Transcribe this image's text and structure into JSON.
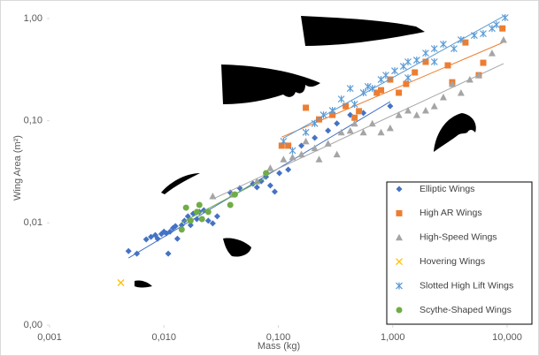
{
  "chart_data": {
    "type": "scatter",
    "x_label": "Mass (kg)",
    "y_label": "Wing Area (m²)",
    "xlog": true,
    "ylog": true,
    "trendline": true,
    "xlim": [
      0.001,
      10
    ],
    "ylim": [
      0.001,
      1
    ],
    "xticks": [
      {
        "value": 0.001,
        "label": "0,001"
      },
      {
        "value": 0.01,
        "label": "0,010"
      },
      {
        "value": 0.1,
        "label": "0,100"
      },
      {
        "value": 1,
        "label": "1,000"
      },
      {
        "value": 10,
        "label": "10,000"
      }
    ],
    "yticks": [
      {
        "value": 0.001,
        "label": "0,00"
      },
      {
        "value": 0.01,
        "label": "0,01"
      },
      {
        "value": 0.1,
        "label": "0,10"
      },
      {
        "value": 1,
        "label": "1,00"
      }
    ],
    "series": [
      {
        "name": "Elliptic Wings",
        "color": "#4472c4",
        "marker": "diamond",
        "x": [
          0.0049,
          0.0058,
          0.007,
          0.0077,
          0.0084,
          0.0088,
          0.0095,
          0.01,
          0.0105,
          0.0109,
          0.0113,
          0.012,
          0.0126,
          0.0131,
          0.0143,
          0.0151,
          0.0162,
          0.0171,
          0.018,
          0.0194,
          0.0204,
          0.0223,
          0.0244,
          0.0267,
          0.0292,
          0.038,
          0.046,
          0.06,
          0.065,
          0.071,
          0.078,
          0.085,
          0.093,
          0.102,
          0.122,
          0.159,
          0.208,
          0.272,
          0.325,
          0.425,
          0.554,
          0.95
        ],
        "values": [
          0.0053,
          0.005,
          0.0069,
          0.0073,
          0.0076,
          0.007,
          0.0078,
          0.0082,
          0.0079,
          0.005,
          0.0082,
          0.0089,
          0.0093,
          0.007,
          0.0095,
          0.0105,
          0.0116,
          0.0095,
          0.0123,
          0.0109,
          0.0128,
          0.0133,
          0.0105,
          0.0099,
          0.0116,
          0.0198,
          0.0219,
          0.0242,
          0.0223,
          0.0256,
          0.0283,
          0.0232,
          0.0202,
          0.0307,
          0.0332,
          0.057,
          0.068,
          0.08,
          0.094,
          0.114,
          0.119,
          0.139
        ]
      },
      {
        "name": "High AR Wings",
        "color": "#ed7d31",
        "marker": "square",
        "x": [
          0.107,
          0.122,
          0.174,
          0.227,
          0.297,
          0.388,
          0.464,
          0.507,
          0.725,
          0.79,
          0.95,
          1.13,
          1.31,
          1.56,
          1.94,
          3.03,
          3.31,
          4.32,
          5.65,
          6.18,
          9.1
        ],
        "values": [
          0.057,
          0.057,
          0.134,
          0.103,
          0.114,
          0.139,
          0.107,
          0.124,
          0.188,
          0.199,
          0.253,
          0.188,
          0.229,
          0.297,
          0.377,
          0.348,
          0.238,
          0.583,
          0.279,
          0.369,
          0.8
        ]
      },
      {
        "name": "High-Speed Wings",
        "color": "#a5a5a5",
        "marker": "triangle",
        "x": [
          0.0267,
          0.0395,
          0.065,
          0.085,
          0.111,
          0.133,
          0.159,
          0.174,
          0.208,
          0.227,
          0.272,
          0.325,
          0.355,
          0.425,
          0.464,
          0.554,
          0.663,
          0.79,
          0.95,
          1.13,
          1.36,
          1.62,
          1.94,
          2.31,
          2.77,
          3.31,
          3.95,
          4.72,
          5.65,
          7.38,
          9.3
        ],
        "values": [
          0.0183,
          0.019,
          0.0256,
          0.0345,
          0.042,
          0.044,
          0.047,
          0.063,
          0.054,
          0.042,
          0.06,
          0.047,
          0.077,
          0.08,
          0.094,
          0.077,
          0.094,
          0.077,
          0.085,
          0.114,
          0.126,
          0.114,
          0.126,
          0.139,
          0.17,
          0.229,
          0.188,
          0.253,
          0.279,
          0.459,
          0.62
        ]
      },
      {
        "name": "Hovering Wings",
        "color": "#ffc000",
        "marker": "cross",
        "x": [
          0.0042
        ],
        "values": [
          0.0026
        ]
      },
      {
        "name": "Slotted High Lift Wings",
        "color": "#5b9bd5",
        "marker": "star",
        "x": [
          0.111,
          0.133,
          0.174,
          0.208,
          0.248,
          0.297,
          0.355,
          0.425,
          0.464,
          0.554,
          0.607,
          0.663,
          0.79,
          0.87,
          1.04,
          1.24,
          1.36,
          1.36,
          1.62,
          1.94,
          2.31,
          2.31,
          2.77,
          3.43,
          3.95,
          5.16,
          6.18,
          7.38,
          8.07,
          9.6
        ],
        "values": [
          0.063,
          0.051,
          0.077,
          0.094,
          0.114,
          0.126,
          0.163,
          0.207,
          0.145,
          0.188,
          0.216,
          0.207,
          0.253,
          0.279,
          0.308,
          0.341,
          0.377,
          0.263,
          0.392,
          0.459,
          0.507,
          0.377,
          0.561,
          0.507,
          0.62,
          0.684,
          0.711,
          0.8,
          0.87,
          1.02
        ]
      },
      {
        "name": "Scythe-Shaped Wings",
        "color": "#70ad47",
        "marker": "circle",
        "x": [
          0.0143,
          0.0156,
          0.0171,
          0.0194,
          0.0204,
          0.0215,
          0.0244,
          0.038,
          0.0417,
          0.078
        ],
        "values": [
          0.0086,
          0.0141,
          0.0105,
          0.0128,
          0.015,
          0.0109,
          0.0128,
          0.015,
          0.019,
          0.0307
        ]
      }
    ]
  }
}
